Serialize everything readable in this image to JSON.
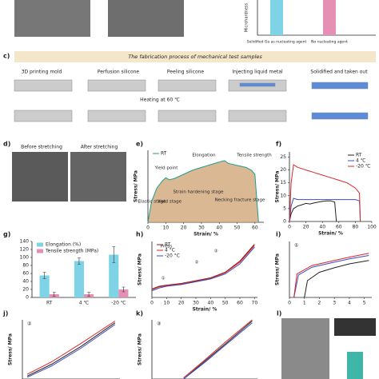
{
  "figure": {
    "panel_labels": {
      "c": "c)",
      "d": "d)",
      "l": "l)"
    },
    "b": {
      "ylabel": "Microhardness",
      "categories": [
        "Solidified Ga as nucleating agent",
        "No nucleating agent"
      ]
    },
    "process": {
      "title": "The fabrication process of mechanical test samples",
      "steps": [
        "3D printing mold",
        "Perfusion silicone",
        "Peeling silicone",
        "Injecting liquid metal",
        "Solidified and taken out"
      ],
      "heating": "Heating at 60 ℃"
    },
    "photos": {
      "before": "Before stretching",
      "after": "After stretching"
    }
  },
  "chart_data": [
    {
      "type": "line",
      "label": "e)",
      "xlabel": "Strain/ %",
      "ylabel": "Stress/ MPa",
      "xlim": [
        0,
        65
      ],
      "ylim": [
        0,
        10.5
      ],
      "xticks": [
        0,
        10,
        20,
        30,
        40,
        50,
        60
      ],
      "fill": "#d2a679",
      "legend": "upper left",
      "annotations": [
        "Elongation",
        "Tensile strength",
        "Yield point",
        "Elastic stage",
        "Yield stage",
        "Strain hardening stage",
        "Necking fracture stage"
      ],
      "series": [
        {
          "name": "RT",
          "color": "#1f9e89",
          "x": [
            0,
            2,
            5,
            8,
            10,
            12,
            15,
            20,
            25,
            30,
            35,
            40,
            43,
            45,
            50,
            55,
            58,
            60,
            62
          ],
          "values": [
            0,
            3,
            5,
            6,
            6.5,
            6.2,
            6.4,
            7,
            7.6,
            8,
            8.4,
            8.8,
            9,
            8.6,
            8.3,
            8,
            7.6,
            7,
            0
          ]
        }
      ]
    },
    {
      "type": "line",
      "label": "f)",
      "xlabel": "Strain/ %",
      "ylabel": "Stress/ MPa",
      "xlim": [
        0,
        100
      ],
      "ylim": [
        0,
        27
      ],
      "xticks": [
        0,
        20,
        40,
        60,
        80,
        100
      ],
      "yticks": [
        0,
        5,
        10,
        15,
        20,
        25
      ],
      "legend": "upper right",
      "series": [
        {
          "name": "RT",
          "color": "#222222",
          "x": [
            0,
            2,
            5,
            10,
            15,
            20,
            25,
            30,
            35,
            40,
            45,
            50,
            55,
            57
          ],
          "values": [
            0,
            3,
            5,
            6,
            6.5,
            7,
            6.8,
            7.2,
            7.5,
            7.8,
            8,
            8,
            7.5,
            0
          ]
        },
        {
          "name": "4 ℃",
          "color": "#3b4cc0",
          "x": [
            0,
            2,
            5,
            10,
            20,
            30,
            40,
            50,
            60,
            70,
            80,
            85,
            86
          ],
          "values": [
            0,
            6,
            9,
            8.5,
            8.5,
            8.5,
            8.5,
            8.5,
            8.5,
            8.5,
            8.5,
            8,
            0
          ]
        },
        {
          "name": "-20 ℃",
          "color": "#d62728",
          "x": [
            0,
            2,
            5,
            10,
            20,
            30,
            40,
            50,
            60,
            70,
            80,
            85,
            86
          ],
          "values": [
            0,
            15,
            22,
            21,
            20,
            19,
            18,
            17,
            16,
            15,
            13,
            11,
            0
          ]
        }
      ]
    },
    {
      "type": "bar",
      "label": "g)",
      "categories": [
        "RT",
        "4 ℃",
        "-20 ℃"
      ],
      "ylim": [
        0,
        140
      ],
      "yticks": [
        0,
        20,
        40,
        60,
        80,
        100,
        120,
        140
      ],
      "legend": "upper left",
      "series": [
        {
          "name": "Elongation (%)",
          "color": "#7fd3e6",
          "values": [
            55,
            91,
            107
          ],
          "errors": [
            8,
            8,
            20
          ]
        },
        {
          "name": "Tensile strength (MPa)",
          "color": "#e68fb5",
          "values": [
            8,
            8,
            20
          ],
          "errors": [
            5,
            5,
            6
          ]
        }
      ]
    },
    {
      "type": "line",
      "label": "h)",
      "xlabel": "Strain/ %",
      "ylabel": "Stress/ MPa",
      "xlim": [
        0,
        72
      ],
      "ylim": [
        0,
        10
      ],
      "xticks": [
        0,
        10,
        20,
        30,
        40,
        50,
        60,
        70
      ],
      "legend": "upper left",
      "annotations": [
        "①",
        "②",
        "③",
        "Press"
      ],
      "series": [
        {
          "name": "RT",
          "color": "#8b1a1a",
          "x": [
            0,
            5,
            10,
            20,
            30,
            40,
            50,
            60,
            65,
            70
          ],
          "values": [
            1.5,
            2,
            2.2,
            2.5,
            3,
            3.5,
            4.5,
            6.5,
            8,
            9.5
          ]
        },
        {
          "name": "4 °C",
          "color": "#d62728",
          "x": [
            0,
            5,
            10,
            20,
            30,
            40,
            50,
            60,
            65,
            70
          ],
          "values": [
            1.4,
            1.9,
            2.1,
            2.4,
            2.9,
            3.4,
            4.4,
            6.3,
            7.8,
            9.3
          ]
        },
        {
          "name": "-20 °C",
          "color": "#3b4cc0",
          "x": [
            0,
            5,
            10,
            20,
            30,
            40,
            50,
            60,
            65,
            70
          ],
          "values": [
            1.2,
            1.7,
            2,
            2.3,
            2.8,
            3.3,
            4.2,
            6,
            7.5,
            9
          ]
        }
      ]
    },
    {
      "type": "line",
      "label": "i)",
      "title": "①",
      "ylabel": "Stress/ MPa",
      "xlim": [
        0,
        5.5
      ],
      "ylim": [
        0,
        10
      ],
      "xticks": [
        0,
        1,
        2,
        3,
        4,
        5
      ],
      "series": [
        {
          "color": "#222222",
          "x": [
            1,
            1.2,
            2,
            3,
            4,
            5.3
          ],
          "values": [
            0,
            3,
            4.5,
            5.3,
            6,
            6.6
          ]
        },
        {
          "color": "#3b4cc0",
          "x": [
            0.3,
            0.6,
            1.5,
            3,
            4,
            5.3
          ],
          "values": [
            0,
            4,
            5.4,
            6.3,
            6.9,
            7.5
          ]
        },
        {
          "color": "#d62728",
          "x": [
            0.3,
            0.5,
            1.5,
            3,
            4,
            5.3
          ],
          "values": [
            0,
            4.2,
            5.7,
            6.6,
            7.2,
            7.9
          ]
        }
      ]
    },
    {
      "type": "line",
      "label": "j)",
      "title": "②",
      "ylabel": "Stress/ MPa",
      "xlim": [
        0,
        10
      ],
      "ylim": [
        0,
        10
      ],
      "series": [
        {
          "color": "#222222",
          "x": [
            0.5,
            3,
            6,
            9.5
          ],
          "values": [
            0.5,
            2.5,
            5.5,
            9.5
          ]
        },
        {
          "color": "#3b4cc0",
          "x": [
            0.5,
            3,
            6,
            9.5
          ],
          "values": [
            0.3,
            2.2,
            5.2,
            9.2
          ]
        },
        {
          "color": "#d62728",
          "x": [
            0.5,
            3,
            6,
            9.5
          ],
          "values": [
            0.8,
            2.9,
            6,
            9.8
          ]
        }
      ]
    },
    {
      "type": "line",
      "label": "k)",
      "title": "③",
      "ylabel": "Stress/ MPa",
      "xlim": [
        0,
        10
      ],
      "ylim": [
        0,
        10
      ],
      "series": [
        {
          "color": "#222222",
          "x": [
            3,
            5,
            7,
            9.5
          ],
          "values": [
            0,
            3,
            6,
            9.8
          ]
        },
        {
          "color": "#3b4cc0",
          "x": [
            3,
            5,
            7,
            9.5
          ],
          "values": [
            0,
            2.8,
            5.8,
            9.5
          ]
        },
        {
          "color": "#d62728",
          "x": [
            3,
            5,
            7,
            9.5
          ],
          "values": [
            0.2,
            3.2,
            6.3,
            10
          ]
        }
      ]
    }
  ]
}
